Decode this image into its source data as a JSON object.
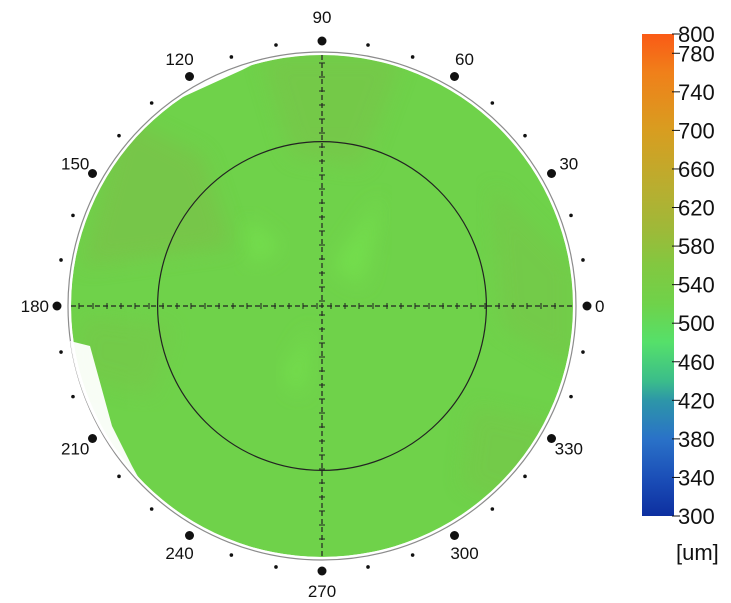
{
  "polar_plot": {
    "angle_labels": [
      "0",
      "30",
      "60",
      "90",
      "120",
      "150",
      "180",
      "210",
      "240",
      "270",
      "300",
      "330"
    ],
    "labeled_angles": [
      0,
      30,
      60,
      90,
      120,
      150,
      180,
      210,
      240,
      270,
      300,
      330
    ],
    "minor_dot_step_deg": 10,
    "inner_ring_fraction": 0.655,
    "fill_color": "#6fd24a",
    "fill_shade_color": "#79c34a",
    "fill_highlight_color": "#74e04e"
  },
  "colorbar": {
    "ticks": [
      "800",
      "780",
      "740",
      "700",
      "660",
      "620",
      "580",
      "540",
      "500",
      "460",
      "420",
      "380",
      "340",
      "300"
    ],
    "tick_values": [
      800,
      780,
      740,
      700,
      660,
      620,
      580,
      540,
      500,
      460,
      420,
      380,
      340,
      300
    ],
    "unit": "[um]",
    "min": 300,
    "max": 800,
    "colors": [
      {
        "value": 300,
        "color": "#0d2fa0"
      },
      {
        "value": 340,
        "color": "#1b4fb8"
      },
      {
        "value": 380,
        "color": "#2a72c8"
      },
      {
        "value": 420,
        "color": "#2d96a8"
      },
      {
        "value": 440,
        "color": "#3bbd8a"
      },
      {
        "value": 480,
        "color": "#55e06a"
      },
      {
        "value": 520,
        "color": "#6fd24a"
      },
      {
        "value": 560,
        "color": "#82c840"
      },
      {
        "value": 600,
        "color": "#a0b838"
      },
      {
        "value": 640,
        "color": "#b8ae30"
      },
      {
        "value": 700,
        "color": "#d89d20"
      },
      {
        "value": 760,
        "color": "#f0801a"
      },
      {
        "value": 800,
        "color": "#fa5a16"
      }
    ]
  }
}
